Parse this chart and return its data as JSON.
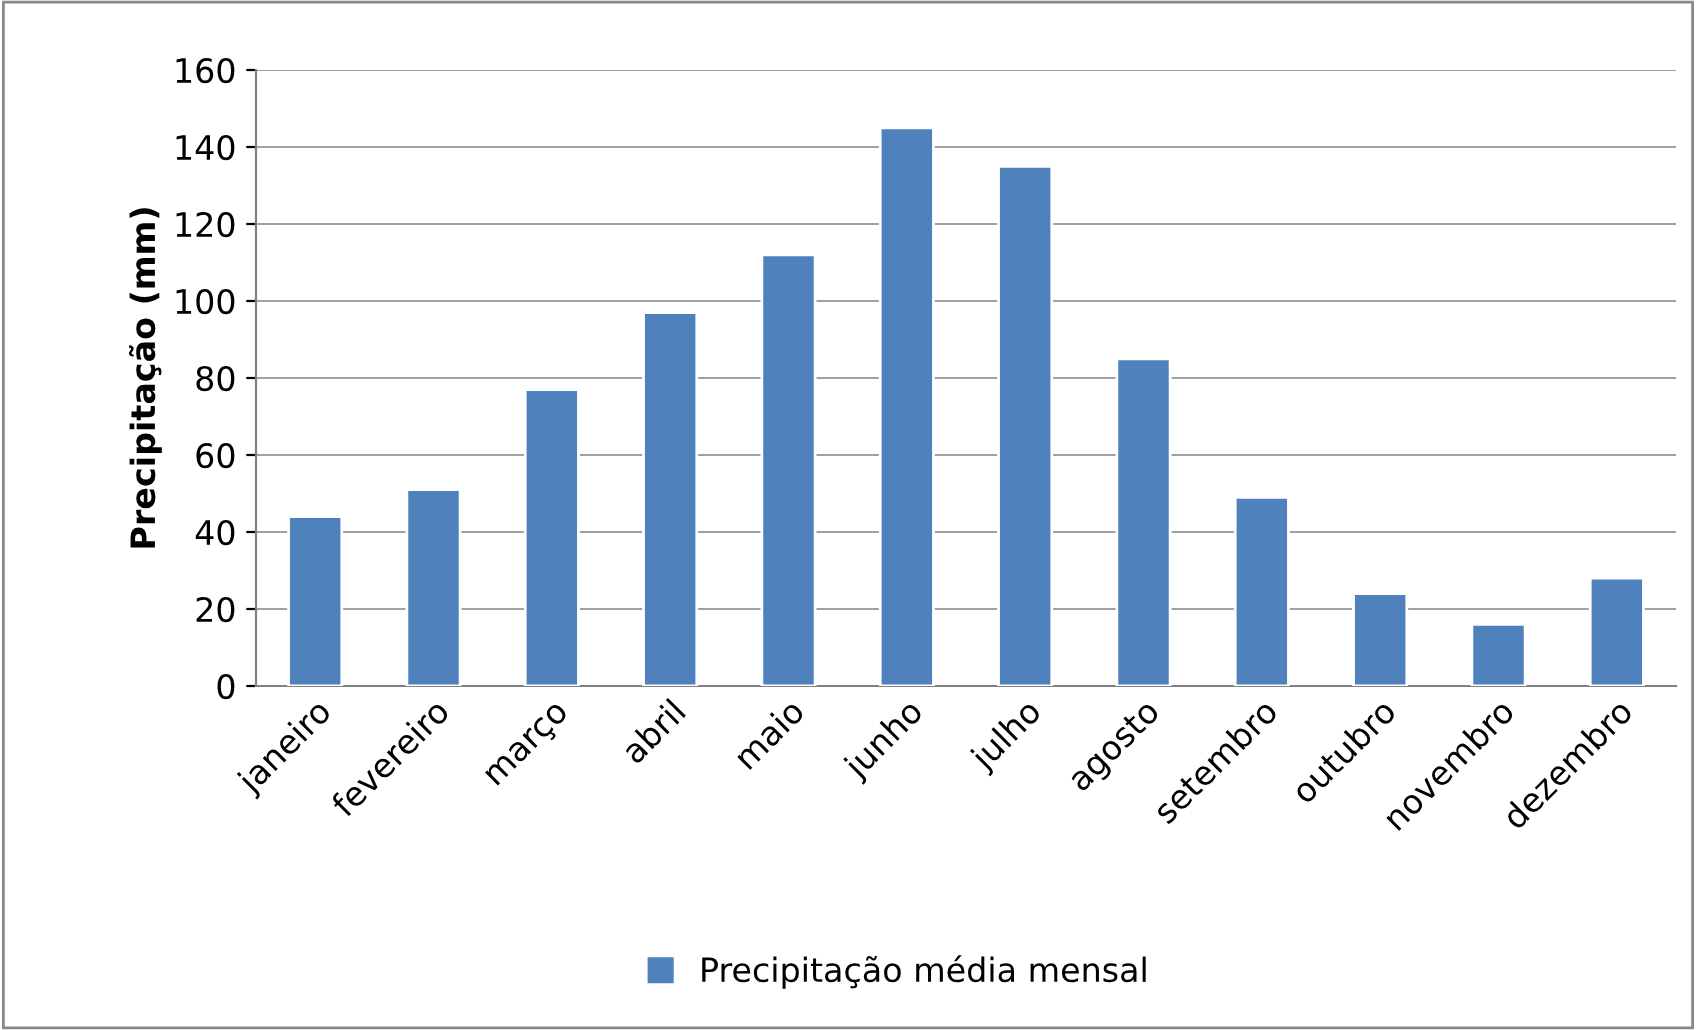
{
  "chart_data": {
    "type": "bar",
    "ylabel": "Precipitação (mm)",
    "categories": [
      "janeiro",
      "fevereiro",
      "março",
      "abril",
      "maio",
      "junho",
      "julho",
      "agosto",
      "setembro",
      "outubro",
      "novembro",
      "dezembro"
    ],
    "series": [
      {
        "name": "Precipitação média mensal",
        "color": "#4f81bd",
        "values": [
          44,
          51,
          77,
          97,
          112,
          145,
          135,
          85,
          49,
          24,
          16,
          28
        ]
      }
    ],
    "ylim": [
      0,
      160
    ],
    "yticks": [
      0,
      20,
      40,
      60,
      80,
      100,
      120,
      140,
      160
    ],
    "grid": "y",
    "legend": "bottom"
  }
}
